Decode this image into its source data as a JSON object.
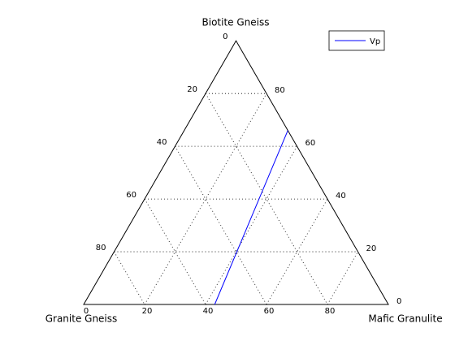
{
  "chart_data": {
    "type": "ternary",
    "top_label": "Biotite Gneiss",
    "left_label": "Granite Gneiss",
    "right_label": "Mafic Granulite",
    "bottom_ticks": [
      0,
      20,
      40,
      60,
      80
    ],
    "left_ticks": [
      0,
      20,
      40,
      60,
      80
    ],
    "right_ticks": [
      0,
      20,
      40,
      60,
      80
    ],
    "grid": true,
    "legend": "northeast",
    "series": [
      {
        "name": "Vp",
        "color": "#0000ff",
        "top": [
          0,
          33,
          66
        ],
        "right": [
          43,
          38.5,
          34
        ]
      }
    ]
  }
}
